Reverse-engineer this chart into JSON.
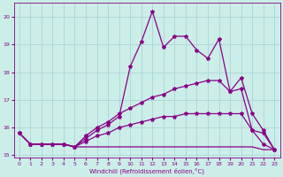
{
  "xlabel": "Windchill (Refroidissement éolien,°C)",
  "background_color": "#cceee8",
  "grid_color": "#b0d8d8",
  "line_color": "#880088",
  "x_values": [
    0,
    1,
    2,
    3,
    4,
    5,
    6,
    7,
    8,
    9,
    10,
    11,
    12,
    13,
    14,
    15,
    16,
    17,
    18,
    19,
    20,
    21,
    22,
    23
  ],
  "series_min": [
    15.8,
    15.4,
    15.4,
    15.4,
    15.4,
    15.3,
    15.3,
    15.3,
    15.3,
    15.3,
    15.3,
    15.3,
    15.3,
    15.3,
    15.3,
    15.3,
    15.3,
    15.3,
    15.3,
    15.3,
    15.3,
    15.3,
    15.2,
    15.2
  ],
  "series_low": [
    15.8,
    15.4,
    15.4,
    15.4,
    15.4,
    15.3,
    15.5,
    15.7,
    15.8,
    16.0,
    16.1,
    16.2,
    16.3,
    16.4,
    16.4,
    16.5,
    16.5,
    16.5,
    16.5,
    16.5,
    16.5,
    15.9,
    15.4,
    15.2
  ],
  "series_high": [
    15.8,
    15.4,
    15.4,
    15.4,
    15.4,
    15.3,
    15.7,
    16.0,
    16.2,
    16.5,
    16.7,
    16.9,
    17.1,
    17.2,
    17.4,
    17.5,
    17.6,
    17.7,
    17.7,
    17.3,
    17.8,
    16.5,
    15.9,
    15.2
  ],
  "series_spike": [
    15.8,
    15.4,
    15.4,
    15.4,
    15.4,
    15.3,
    15.6,
    15.9,
    16.1,
    16.4,
    18.2,
    19.1,
    20.2,
    18.9,
    19.3,
    19.3,
    18.8,
    18.5,
    19.2,
    17.3,
    17.4,
    15.9,
    15.8,
    15.2
  ],
  "ylim": [
    14.9,
    20.5
  ],
  "yticks": [
    15,
    16,
    17,
    18,
    19,
    20
  ],
  "xlim": [
    -0.5,
    23.5
  ]
}
